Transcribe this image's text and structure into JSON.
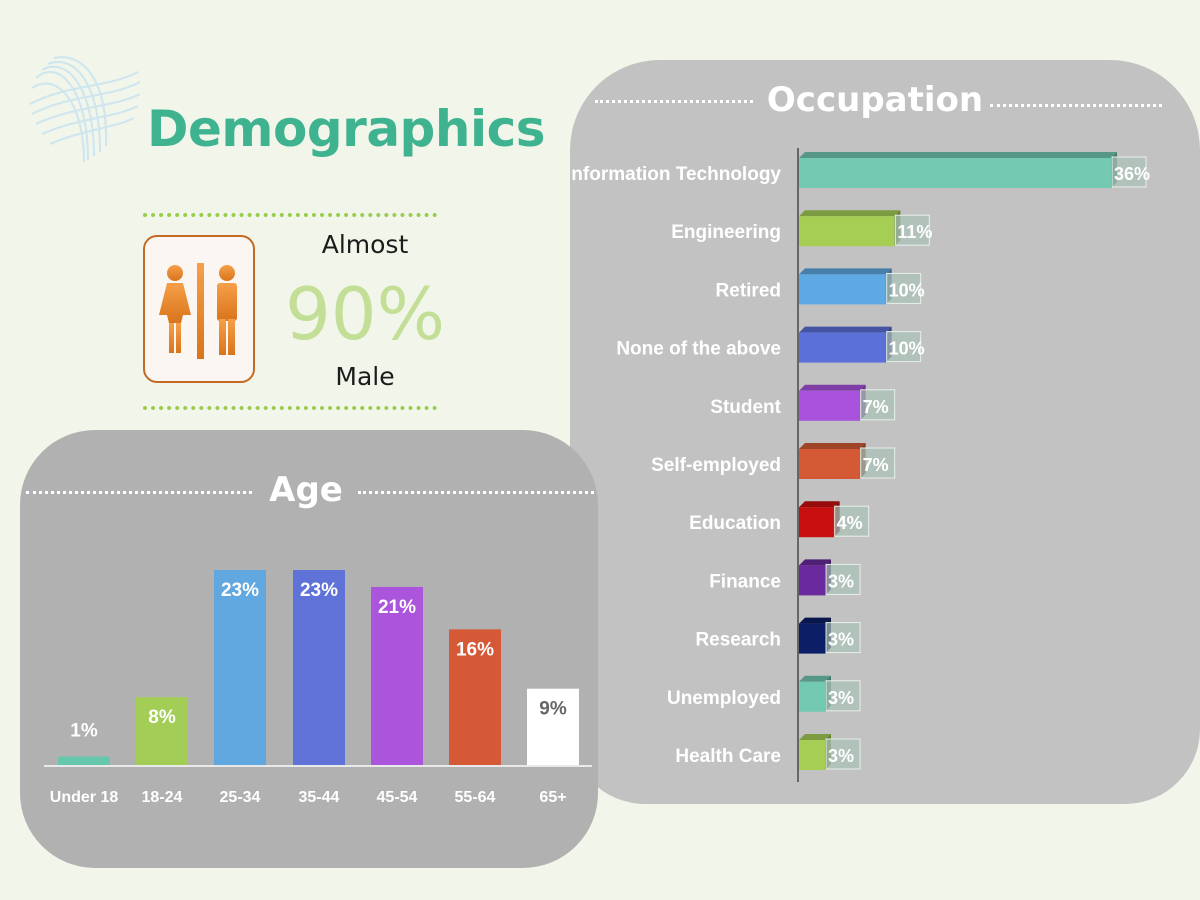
{
  "page": {
    "title": "Demographics"
  },
  "gender": {
    "lead": "Almost",
    "value": "90%",
    "label": "Male"
  },
  "occupation": {
    "title": "Occupation"
  },
  "age": {
    "title": "Age"
  },
  "chart_data": [
    {
      "type": "bar",
      "orientation": "horizontal",
      "title": "Occupation",
      "categories": [
        "Information Technology",
        "Engineering",
        "Retired",
        "None of the above",
        "Student",
        "Self-employed",
        "Education",
        "Finance",
        "Research",
        "Unemployed",
        "Health Care"
      ],
      "values": [
        36,
        11,
        10,
        10,
        7,
        7,
        4,
        3,
        3,
        3,
        3
      ],
      "labels": [
        "36%",
        "11%",
        "10%",
        "10%",
        "7%",
        "7%",
        "4%",
        "3%",
        "3%",
        "3%",
        "3%"
      ],
      "colors": [
        "#73c9b1",
        "#a6ce55",
        "#5ea9e4",
        "#5c70d9",
        "#a852dd",
        "#d35a35",
        "#c80f0f",
        "#6a2a9e",
        "#0c1f66",
        "#73c9b1",
        "#a6ce55"
      ],
      "xlim": [
        0,
        40
      ],
      "grid": false,
      "legend": "none"
    },
    {
      "type": "bar",
      "orientation": "vertical",
      "title": "Age",
      "categories": [
        "Under 18",
        "18-24",
        "25-34",
        "35-44",
        "45-54",
        "55-64",
        "65+"
      ],
      "values": [
        1,
        8,
        23,
        23,
        21,
        16,
        9
      ],
      "labels": [
        "1%",
        "8%",
        "23%",
        "23%",
        "21%",
        "16%",
        "9%"
      ],
      "colors": [
        "#67c7ad",
        "#a4cd58",
        "#62a8e0",
        "#5f72d8",
        "#ab55dd",
        "#d65937",
        "#ffffff"
      ],
      "ylim": [
        0,
        25
      ],
      "grid": false,
      "legend": "none"
    }
  ]
}
